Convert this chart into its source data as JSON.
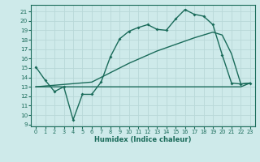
{
  "xlabel": "Humidex (Indice chaleur)",
  "background_color": "#ceeaea",
  "grid_color": "#b8d8d8",
  "line_color": "#1a6b5a",
  "xlim": [
    -0.5,
    23.5
  ],
  "ylim": [
    8.8,
    21.7
  ],
  "xticks": [
    0,
    1,
    2,
    3,
    4,
    5,
    6,
    7,
    8,
    9,
    10,
    11,
    12,
    13,
    14,
    15,
    16,
    17,
    18,
    19,
    20,
    21,
    22,
    23
  ],
  "yticks": [
    9,
    10,
    11,
    12,
    13,
    14,
    15,
    16,
    17,
    18,
    19,
    20,
    21
  ],
  "line1_x": [
    0,
    1,
    2,
    3,
    4,
    5,
    6,
    7,
    8,
    9,
    10,
    11,
    12,
    13,
    14,
    15,
    16,
    17,
    18,
    19,
    20,
    21,
    22,
    23
  ],
  "line1_y": [
    15.1,
    13.7,
    12.5,
    13.0,
    9.5,
    12.2,
    12.2,
    13.5,
    16.2,
    18.1,
    18.9,
    19.3,
    19.6,
    19.1,
    19.0,
    20.2,
    21.2,
    20.7,
    20.5,
    19.6,
    16.4,
    13.4,
    13.3,
    13.4
  ],
  "line2_x": [
    0,
    22,
    23
  ],
  "line2_y": [
    13.0,
    13.0,
    13.4
  ],
  "line3_x": [
    0,
    6,
    10,
    13,
    15,
    17,
    18,
    19,
    20,
    21,
    22,
    23
  ],
  "line3_y": [
    13.0,
    13.5,
    15.5,
    16.8,
    17.5,
    18.2,
    18.5,
    18.8,
    18.5,
    16.5,
    13.3,
    13.4
  ]
}
